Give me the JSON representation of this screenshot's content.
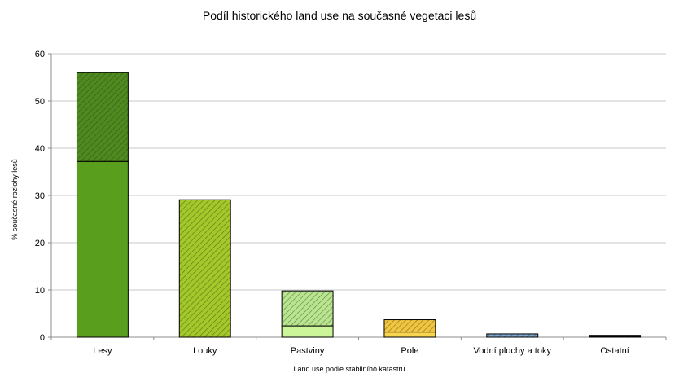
{
  "chart_data": {
    "type": "bar",
    "stacked": true,
    "title": "Podíl historického land use na současné vegetaci lesů",
    "xlabel": "Land use podle stabilního katastru",
    "ylabel": "% současné rozlohy lesů",
    "ylim": [
      0,
      60
    ],
    "yticks": [
      0,
      10,
      20,
      30,
      40,
      50,
      60
    ],
    "grid": true,
    "legend": "none",
    "categories": [
      "Lesy",
      "Louky",
      "Pastviny",
      "Pole",
      "Vodní plochy a toky",
      "Ostatní"
    ],
    "series": [
      {
        "values": [
          37.2,
          0,
          2.4,
          1.1,
          0,
          0
        ],
        "pattern": "solid",
        "colors": [
          "#5a9e1e",
          "#a4c82a",
          "#ccf59a",
          "#f8d54e",
          "#7fa7d4",
          "#000000"
        ]
      },
      {
        "values": [
          18.8,
          29.1,
          7.4,
          2.6,
          0.7,
          0.4
        ],
        "pattern": "hatched",
        "colors": [
          "#4e8a1f",
          "#a4c82a",
          "#b9e590",
          "#f2c440",
          "#7fa7d4",
          "#000000"
        ]
      }
    ]
  }
}
